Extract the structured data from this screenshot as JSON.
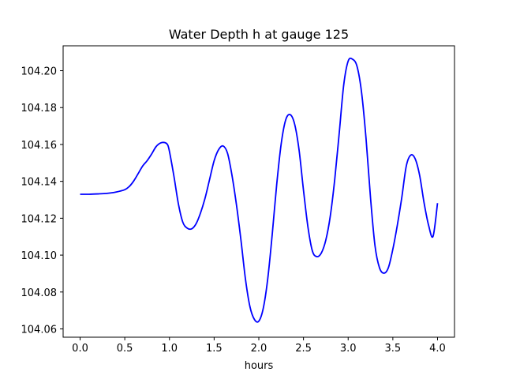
{
  "chart_data": {
    "type": "line",
    "title": "Water Depth h at gauge 125",
    "xlabel": "hours",
    "ylabel": "",
    "xlim": [
      -0.19,
      4.19
    ],
    "ylim": [
      104.0555,
      104.2135
    ],
    "xticks": [
      0.0,
      0.5,
      1.0,
      1.5,
      2.0,
      2.5,
      3.0,
      3.5,
      4.0
    ],
    "xtick_labels": [
      "0.0",
      "0.5",
      "1.0",
      "1.5",
      "2.0",
      "2.5",
      "3.0",
      "3.5",
      "4.0"
    ],
    "yticks": [
      104.06,
      104.08,
      104.1,
      104.12,
      104.14,
      104.16,
      104.18,
      104.2
    ],
    "ytick_labels": [
      "104.06",
      "104.08",
      "104.10",
      "104.12",
      "104.14",
      "104.16",
      "104.18",
      "104.20"
    ],
    "grid": false,
    "legend": "none",
    "series": [
      {
        "color": "#0000ff",
        "x": [
          0.0,
          0.1,
          0.2,
          0.3,
          0.4,
          0.5,
          0.55,
          0.6,
          0.65,
          0.7,
          0.75,
          0.8,
          0.85,
          0.9,
          0.95,
          0.98,
          1.0,
          1.05,
          1.1,
          1.15,
          1.2,
          1.25,
          1.3,
          1.35,
          1.4,
          1.45,
          1.5,
          1.55,
          1.6,
          1.65,
          1.7,
          1.75,
          1.8,
          1.85,
          1.9,
          1.95,
          2.0,
          2.05,
          2.1,
          2.15,
          2.2,
          2.25,
          2.3,
          2.35,
          2.4,
          2.45,
          2.5,
          2.55,
          2.6,
          2.65,
          2.7,
          2.75,
          2.8,
          2.85,
          2.9,
          2.95,
          3.0,
          3.05,
          3.1,
          3.15,
          3.2,
          3.25,
          3.3,
          3.35,
          3.4,
          3.45,
          3.5,
          3.55,
          3.6,
          3.65,
          3.7,
          3.75,
          3.8,
          3.85,
          3.9,
          3.95,
          4.0
        ],
        "y": [
          104.133,
          104.133,
          104.1332,
          104.1335,
          104.1342,
          104.1355,
          104.1372,
          104.1402,
          104.1442,
          104.1483,
          104.1512,
          104.1548,
          104.1588,
          104.1608,
          104.161,
          104.1598,
          104.1562,
          104.1428,
          104.1278,
          104.1178,
          104.1146,
          104.1143,
          104.1172,
          104.1232,
          104.1312,
          104.1412,
          104.1512,
          104.1572,
          104.1592,
          104.1552,
          104.1432,
          104.1272,
          104.1082,
          104.0872,
          104.0722,
          104.0652,
          104.0642,
          104.0712,
          104.0872,
          104.1112,
          104.1382,
          104.1602,
          104.1732,
          104.1762,
          104.1712,
          104.1572,
          104.1352,
          104.1152,
          104.1022,
          104.0992,
          104.1012,
          104.1082,
          104.1212,
          104.1412,
          104.1662,
          104.1922,
          104.2052,
          104.2062,
          104.2022,
          104.1882,
          104.1632,
          104.1312,
          104.1052,
          104.0932,
          104.0902,
          104.0932,
          104.1032,
          104.1162,
          104.1312,
          104.1482,
          104.1542,
          104.1522,
          104.1432,
          104.1282,
          104.1162,
          104.1102,
          104.1282
        ]
      }
    ]
  }
}
